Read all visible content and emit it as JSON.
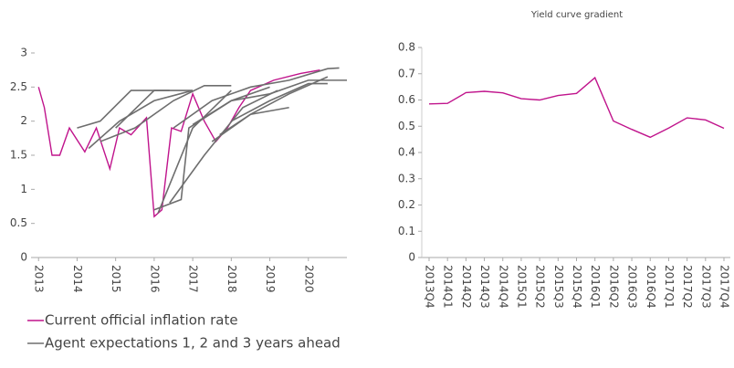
{
  "chart_data": [
    {
      "type": "line",
      "xlim": [
        2012.9,
        2021
      ],
      "xticks": [
        2013,
        2014,
        2015,
        2016,
        2017,
        2018,
        2019,
        2020
      ],
      "ylim": [
        0,
        3
      ],
      "yticks": [
        0,
        0.5,
        1,
        1.5,
        2,
        2.5,
        3
      ],
      "series": [
        {
          "name": "Current official inflation rate",
          "color": "#c0148c",
          "x": [
            2013.0,
            2013.15,
            2013.35,
            2013.55,
            2013.8,
            2014.2,
            2014.5,
            2014.85,
            2015.1,
            2015.4,
            2015.8,
            2016.0,
            2016.2,
            2016.45,
            2016.7,
            2017.0,
            2017.3,
            2017.6,
            2017.9,
            2018.2,
            2018.5,
            2019.1,
            2019.8,
            2020.3
          ],
          "values": [
            2.5,
            2.2,
            1.5,
            1.5,
            1.9,
            1.55,
            1.9,
            1.3,
            1.9,
            1.8,
            2.05,
            0.6,
            0.7,
            1.9,
            1.85,
            2.4,
            2.0,
            1.7,
            1.9,
            2.2,
            2.45,
            2.6,
            2.7,
            2.75
          ]
        },
        {
          "name": "Agent expectations 1, 2 and 3 years ahead",
          "color": "#6e6e6e",
          "lines": [
            {
              "x": [
                2014.0,
                2014.6,
                2015.4,
                2016.4
              ],
              "values": [
                1.9,
                2.0,
                2.45,
                2.45
              ]
            },
            {
              "x": [
                2014.3,
                2015.1,
                2016.0,
                2017.0
              ],
              "values": [
                1.6,
                2.0,
                2.3,
                2.45
              ]
            },
            {
              "x": [
                2014.6,
                2015.5,
                2016.5,
                2017.3,
                2018.0
              ],
              "values": [
                1.7,
                1.9,
                2.3,
                2.52,
                2.52
              ]
            },
            {
              "x": [
                2015.0,
                2016.0,
                2017.0
              ],
              "values": [
                1.9,
                2.45,
                2.45
              ]
            },
            {
              "x": [
                2016.0,
                2016.7,
                2016.9,
                2018.0,
                2019.0
              ],
              "values": [
                0.7,
                0.85,
                1.9,
                2.3,
                2.5
              ]
            },
            {
              "x": [
                2016.1,
                2017.0,
                2018.0
              ],
              "values": [
                0.65,
                1.9,
                2.45
              ]
            },
            {
              "x": [
                2016.4,
                2017.3,
                2018.3,
                2019.2
              ],
              "values": [
                0.8,
                1.5,
                2.2,
                2.45
              ]
            },
            {
              "x": [
                2016.5,
                2017.5,
                2018.5,
                2019.5,
                2020.5,
                2020.8
              ],
              "values": [
                1.9,
                2.3,
                2.5,
                2.6,
                2.77,
                2.78
              ]
            },
            {
              "x": [
                2017.0,
                2018.0,
                2019.0,
                2020.0,
                2021.0
              ],
              "values": [
                1.95,
                2.3,
                2.4,
                2.6,
                2.6
              ]
            },
            {
              "x": [
                2017.5,
                2018.5,
                2019.5,
                2020.5
              ],
              "values": [
                1.7,
                2.1,
                2.4,
                2.65
              ]
            },
            {
              "x": [
                2018.0,
                2019.0,
                2020.0,
                2020.5
              ],
              "values": [
                2.0,
                2.3,
                2.55,
                2.55
              ]
            },
            {
              "x": [
                2017.7,
                2018.5,
                2019.5
              ],
              "values": [
                1.8,
                2.1,
                2.2
              ]
            }
          ]
        }
      ]
    },
    {
      "type": "line",
      "title": "Yield curve gradient",
      "color": "#c0148c",
      "categories": [
        "2013Q4",
        "2014Q1",
        "2014Q2",
        "2014Q3",
        "2014Q4",
        "2015Q1",
        "2015Q2",
        "2015Q3",
        "2015Q4",
        "2016Q1",
        "2016Q2",
        "2016Q3",
        "2016Q4",
        "2017Q1",
        "2017Q2",
        "2017Q3",
        "2017Q4"
      ],
      "values": [
        0.585,
        0.587,
        0.628,
        0.633,
        0.627,
        0.605,
        0.6,
        0.617,
        0.625,
        0.685,
        0.52,
        0.488,
        0.458,
        0.493,
        0.532,
        0.524,
        0.492
      ],
      "ylim": [
        0,
        0.8
      ],
      "yticks": [
        0,
        0.1,
        0.2,
        0.3,
        0.4,
        0.5,
        0.6,
        0.7,
        0.8
      ]
    }
  ]
}
